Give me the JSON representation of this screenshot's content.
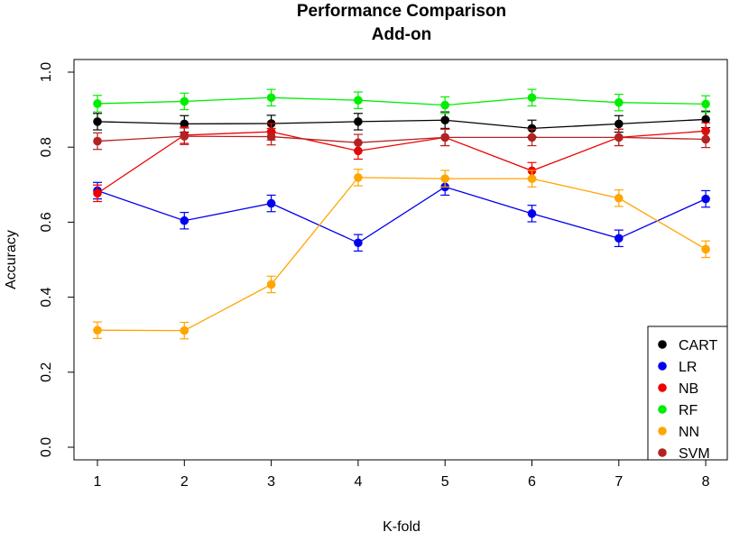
{
  "chart_data": {
    "type": "line",
    "title": "Performance Comparison",
    "subtitle": "Add-on",
    "xlabel": "K-fold",
    "ylabel": "Accuracy",
    "x": [
      1,
      2,
      3,
      4,
      5,
      6,
      7,
      8
    ],
    "x_tick_labels": [
      "1",
      "2",
      "3",
      "4",
      "5",
      "6",
      "7",
      "8"
    ],
    "ylim": [
      0.0,
      1.0
    ],
    "y_tick_labels": [
      "0.0",
      "0.2",
      "0.4",
      "0.6",
      "0.8",
      "1.0"
    ],
    "error_bar_halfwidth": 0.022,
    "legend_position": "bottom-right",
    "series": [
      {
        "name": "CART",
        "color": "#000000",
        "values": [
          0.868,
          0.862,
          0.863,
          0.868,
          0.872,
          0.85,
          0.862,
          0.874
        ]
      },
      {
        "name": "LR",
        "color": "#0000ee",
        "values": [
          0.684,
          0.604,
          0.65,
          0.545,
          0.694,
          0.623,
          0.557,
          0.662
        ]
      },
      {
        "name": "NB",
        "color": "#ee0000",
        "values": [
          0.677,
          0.832,
          0.841,
          0.79,
          0.826,
          0.737,
          0.826,
          0.843
        ]
      },
      {
        "name": "RF",
        "color": "#00ee00",
        "values": [
          0.916,
          0.922,
          0.932,
          0.925,
          0.912,
          0.932,
          0.919,
          0.915
        ]
      },
      {
        "name": "NN",
        "color": "#ffa500",
        "values": [
          0.312,
          0.311,
          0.434,
          0.719,
          0.716,
          0.716,
          0.664,
          0.528
        ]
      },
      {
        "name": "SVM",
        "color": "#b22222",
        "values": [
          0.816,
          0.829,
          0.828,
          0.812,
          0.826,
          0.826,
          0.826,
          0.821
        ]
      }
    ]
  }
}
